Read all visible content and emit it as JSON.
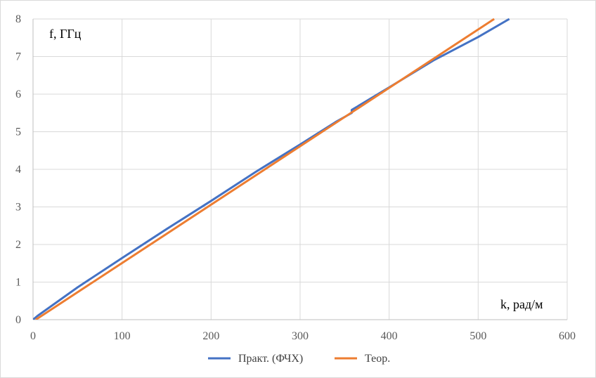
{
  "chart_data": {
    "type": "line",
    "xlabel": "k, рад/м",
    "ylabel": "f, ГГц",
    "xlim": [
      0,
      600
    ],
    "ylim": [
      0,
      8
    ],
    "x_ticks": [
      "0",
      "100",
      "200",
      "300",
      "400",
      "500",
      "600"
    ],
    "y_ticks": [
      "0",
      "1",
      "2",
      "3",
      "4",
      "5",
      "6",
      "7",
      "8"
    ],
    "grid": true,
    "legend": "bottom",
    "series": [
      {
        "name": "Практ. (ФЧХ)",
        "color": "#4472c4",
        "points": [
          [
            0,
            0
          ],
          [
            5,
            0.1
          ],
          [
            50,
            0.86
          ],
          [
            100,
            1.64
          ],
          [
            150,
            2.41
          ],
          [
            200,
            3.16
          ],
          [
            250,
            3.93
          ],
          [
            300,
            4.66
          ],
          [
            340,
            5.26
          ],
          [
            358,
            5.5
          ],
          [
            358,
            5.58
          ],
          [
            400,
            6.18
          ],
          [
            450,
            6.9
          ],
          [
            500,
            7.52
          ],
          [
            535,
            8.0
          ]
        ]
      },
      {
        "name": "Теор.",
        "color": "#ed7d31",
        "points": [
          [
            3,
            0
          ],
          [
            518,
            8.0
          ]
        ]
      }
    ]
  }
}
